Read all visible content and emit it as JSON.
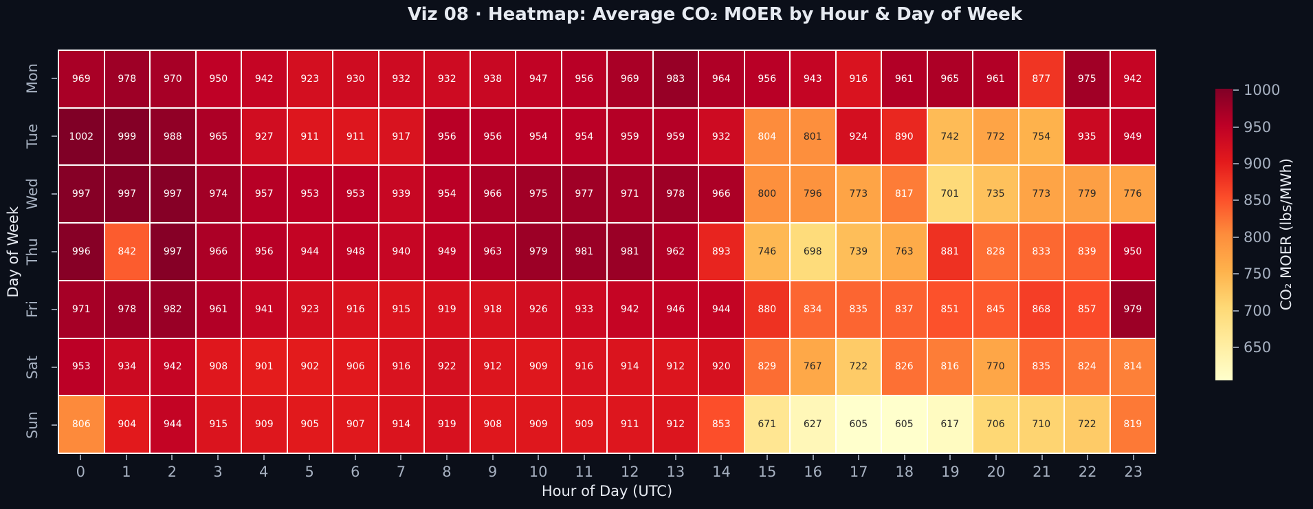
{
  "title": "Viz 08 · Heatmap: Average CO₂ MOER by Hour & Day of Week",
  "chart_data": {
    "type": "heatmap",
    "title": "Viz 08 · Heatmap: Average CO₂ MOER by Hour & Day of Week",
    "xlabel": "Hour of Day (UTC)",
    "ylabel": "Day of Week",
    "x_ticks": [
      "0",
      "1",
      "2",
      "3",
      "4",
      "5",
      "6",
      "7",
      "8",
      "9",
      "10",
      "11",
      "12",
      "13",
      "14",
      "15",
      "16",
      "17",
      "18",
      "19",
      "20",
      "21",
      "22",
      "23"
    ],
    "rows": [
      "Mon",
      "Tue",
      "Wed",
      "Thu",
      "Fri",
      "Sat",
      "Sun"
    ],
    "values": [
      [
        969,
        978,
        970,
        950,
        942,
        923,
        930,
        932,
        932,
        938,
        947,
        956,
        969,
        983,
        964,
        956,
        943,
        916,
        961,
        965,
        961,
        877,
        975,
        942
      ],
      [
        1002,
        999,
        988,
        965,
        927,
        911,
        911,
        917,
        956,
        956,
        954,
        954,
        959,
        959,
        932,
        804,
        801,
        924,
        890,
        742,
        772,
        754,
        935,
        949
      ],
      [
        997,
        997,
        997,
        974,
        957,
        953,
        953,
        939,
        954,
        966,
        975,
        977,
        971,
        978,
        966,
        800,
        796,
        773,
        817,
        701,
        735,
        773,
        779,
        776
      ],
      [
        996,
        842,
        997,
        966,
        956,
        944,
        948,
        940,
        949,
        963,
        979,
        981,
        981,
        962,
        893,
        746,
        698,
        739,
        763,
        881,
        828,
        833,
        839,
        950
      ],
      [
        971,
        978,
        982,
        961,
        941,
        923,
        916,
        915,
        919,
        918,
        926,
        933,
        942,
        946,
        944,
        880,
        834,
        835,
        837,
        851,
        845,
        868,
        857,
        979
      ],
      [
        953,
        934,
        942,
        908,
        901,
        902,
        906,
        916,
        922,
        912,
        909,
        916,
        914,
        912,
        920,
        829,
        767,
        722,
        826,
        816,
        770,
        835,
        824,
        814
      ],
      [
        806,
        904,
        944,
        915,
        909,
        905,
        907,
        914,
        919,
        908,
        909,
        909,
        911,
        912,
        853,
        671,
        627,
        605,
        605,
        617,
        706,
        710,
        722,
        819
      ]
    ],
    "vmin": 605,
    "vmax": 1002,
    "annotated": true,
    "grid_line_color": "#ffffff",
    "colorbar": {
      "label": "CO₂ MOER (lbs/MWh)",
      "ticks": [
        1000,
        950,
        900,
        850,
        800,
        750,
        700,
        650
      ],
      "colormap": "YlOrRd",
      "stops": [
        "#ffffcc",
        "#ffeda0",
        "#fed976",
        "#feb24c",
        "#fd8d3c",
        "#fc4e2a",
        "#e31a1c",
        "#bd0026",
        "#800026"
      ]
    }
  },
  "colors": {
    "background": "#0b0f19",
    "title_text": "#e6eaf1",
    "axis_label_text": "#e6eaf1",
    "tick_label_text": "#a6b0c0",
    "tick_mark": "#8e97a6",
    "annot_light": "#ffffff",
    "annot_dark": "#262626"
  }
}
